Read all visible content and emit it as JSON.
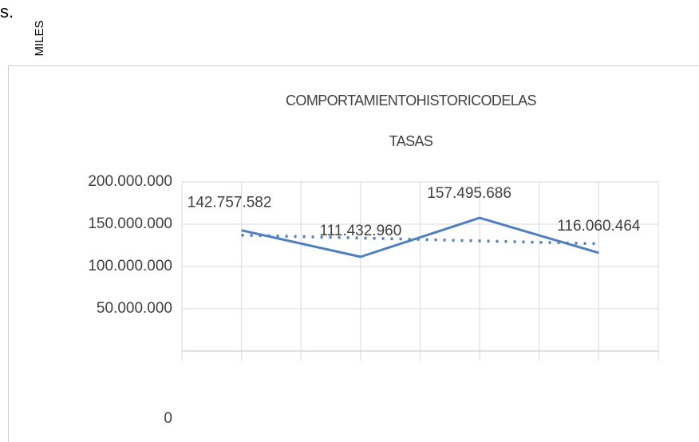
{
  "header": {
    "fragment": "s.",
    "unit_label": "MILES"
  },
  "chart_data": {
    "type": "line",
    "title": [
      "COMPORTAMIENTOHISTORICODELAS",
      "TASAS"
    ],
    "categories": [
      null,
      null,
      null,
      null
    ],
    "values": [
      142757582,
      111432960,
      157495686,
      116060464
    ],
    "value_labels": [
      "142.757.582",
      "111.432.960",
      "157.495.686",
      "116.060.464"
    ],
    "color": "#4f7fbf",
    "trendline": {
      "values": [
        137040000,
        133640000,
        130240000,
        126840000
      ],
      "color": "#4f7fbf",
      "style": "dotted"
    },
    "ylim": [
      0,
      200000000
    ],
    "yticks": [
      0,
      {
        "value": 50000000,
        "label": "50.000.000"
      },
      {
        "value": 100000000,
        "label": "100.000.000"
      },
      {
        "value": 150000000,
        "label": "150.000.000"
      },
      {
        "value": 200000000,
        "label": "200.000.000"
      }
    ],
    "grid": true
  }
}
